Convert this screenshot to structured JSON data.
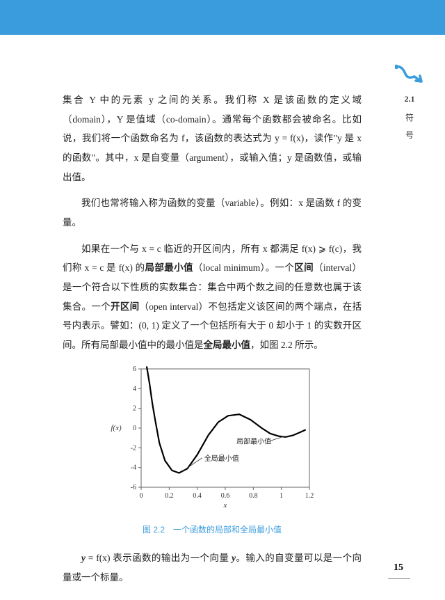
{
  "topbar_color": "#3a9cdc",
  "side": {
    "section": "2.1",
    "char1": "符",
    "char2": "号",
    "icon_color": "#3a9cdc"
  },
  "para1": "集合 Y 中的元素 y 之间的关系。我们称 X 是该函数的定义域（domain），Y 是值域（co-domain）。通常每个函数都会被命名。比如说，我们将一个函数命名为 f，该函数的表达式为 y = f(x)，读作\"y 是 x 的函数\"。其中，x 是自变量（argument），或输入值；y 是函数值，或输出值。",
  "para2": "我们也常将输入称为函数的变量（variable）。例如：x 是函数 f 的变量。",
  "para3_a": "如果在一个与 x = c 临近的开区间内，所有 x 都满足 f(x) ⩾ f(c)，我们称 x = c 是 f(x) 的",
  "para3_b": "局部最小值",
  "para3_c": "（local minimum）。一个",
  "para3_d": "区间",
  "para3_e": "（interval）是一个符合以下性质的实数集合：集合中两个数之间的任意数也属于该集合。一个",
  "para3_f": "开区间",
  "para3_g": "（open interval）不包括定义该区间的两个端点，在括号内表示。譬如：(0, 1) 定义了一个包括所有大于 0 却小于 1 的实数开区间。所有局部最小值中的最小值是",
  "para3_h": "全局最小值",
  "para3_i": "，如图 2.2 所示。",
  "figure": {
    "caption": "图 2.2　一个函数的局部和全局最小值",
    "xlabel": "x",
    "ylabel": "f(x)",
    "xlim": [
      0,
      1.2
    ],
    "ylim": [
      -6,
      6
    ],
    "xticks": [
      0,
      0.2,
      0.4,
      0.6,
      0.8,
      1,
      1.2
    ],
    "yticks": [
      -6,
      -4,
      -2,
      0,
      2,
      4,
      6
    ],
    "curve_color": "#000000",
    "axis_color": "#666666",
    "tick_color": "#666666",
    "grid": false,
    "annotation_local": "局部最小值",
    "annotation_global": "全局最小值",
    "label_fontsize": 10,
    "tick_fontsize": 10,
    "line_width": 2.2,
    "curve_points": [
      [
        0.04,
        6.2
      ],
      [
        0.06,
        4.5
      ],
      [
        0.08,
        2.5
      ],
      [
        0.1,
        0.8
      ],
      [
        0.13,
        -1.5
      ],
      [
        0.17,
        -3.3
      ],
      [
        0.22,
        -4.3
      ],
      [
        0.27,
        -4.55
      ],
      [
        0.33,
        -4.1
      ],
      [
        0.4,
        -2.7
      ],
      [
        0.48,
        -0.7
      ],
      [
        0.55,
        0.6
      ],
      [
        0.62,
        1.25
      ],
      [
        0.7,
        1.4
      ],
      [
        0.78,
        0.85
      ],
      [
        0.86,
        0.0
      ],
      [
        0.92,
        -0.55
      ],
      [
        0.98,
        -0.82
      ],
      [
        1.03,
        -0.9
      ],
      [
        1.08,
        -0.75
      ],
      [
        1.13,
        -0.45
      ],
      [
        1.17,
        -0.2
      ]
    ],
    "global_min_point": [
      0.27,
      -4.55
    ],
    "local_min_point": [
      1.03,
      -0.9
    ]
  },
  "para4_a": "y",
  "para4_b": " = f(x) 表示函数的输出为一个向量 ",
  "para4_c": "y",
  "para4_d": "。输入的自变量可以是一个向量或一个标量。",
  "page_number": "15"
}
